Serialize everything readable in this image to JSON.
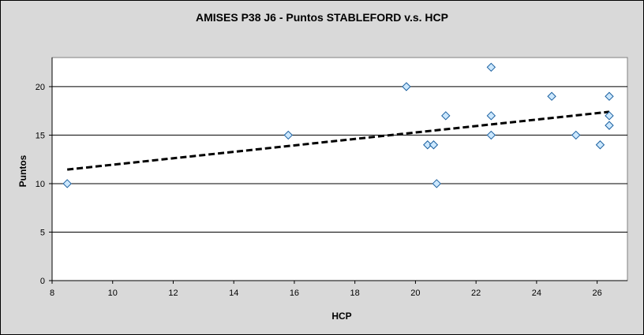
{
  "chart_data": {
    "type": "scatter",
    "title": "AMISES P38 J6 - Puntos STABLEFORD v.s. HCP",
    "xlabel": "HCP",
    "ylabel": "Puntos",
    "xlim": [
      8,
      27
    ],
    "ylim": [
      0,
      23
    ],
    "xticks": [
      8,
      10,
      12,
      14,
      16,
      18,
      20,
      22,
      24,
      26
    ],
    "yticks": [
      0,
      5,
      10,
      15,
      20
    ],
    "grid": "horizontal",
    "legend": "none",
    "marker": "diamond",
    "colors": {
      "background": "#d9d9d9",
      "plot_area": "#ffffff",
      "marker_fill": "#cce8ff",
      "marker_stroke": "#1a5f9e",
      "trendline": "#000000"
    },
    "series": [
      {
        "points": [
          {
            "x": 8.5,
            "y": 10
          },
          {
            "x": 15.8,
            "y": 15
          },
          {
            "x": 19.7,
            "y": 20
          },
          {
            "x": 20.4,
            "y": 14
          },
          {
            "x": 20.6,
            "y": 14
          },
          {
            "x": 20.7,
            "y": 10
          },
          {
            "x": 21.0,
            "y": 17
          },
          {
            "x": 22.5,
            "y": 22
          },
          {
            "x": 22.5,
            "y": 17
          },
          {
            "x": 22.5,
            "y": 15
          },
          {
            "x": 24.5,
            "y": 19
          },
          {
            "x": 25.3,
            "y": 15
          },
          {
            "x": 26.1,
            "y": 14
          },
          {
            "x": 26.4,
            "y": 19
          },
          {
            "x": 26.4,
            "y": 17
          },
          {
            "x": 26.4,
            "y": 16
          }
        ]
      }
    ],
    "trendline": {
      "type": "linear",
      "style": "dashed",
      "from": {
        "x": 8.5,
        "y": 11.45
      },
      "to": {
        "x": 26.4,
        "y": 17.4
      }
    }
  }
}
